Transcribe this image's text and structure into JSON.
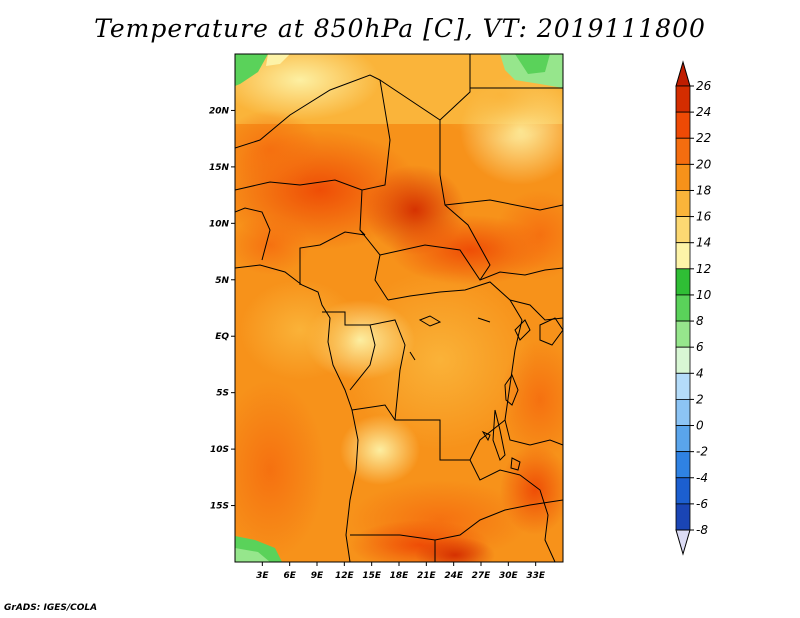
{
  "title": "Temperature at 850hPa [C], VT: 2019111800",
  "credit": "GrADS: IGES/COLA",
  "map": {
    "lon_range": [
      0,
      36
    ],
    "lat_range": [
      -20,
      25
    ],
    "lon_ticks": [
      {
        "value": 3,
        "label": "3E"
      },
      {
        "value": 6,
        "label": "6E"
      },
      {
        "value": 9,
        "label": "9E"
      },
      {
        "value": 12,
        "label": "12E"
      },
      {
        "value": 15,
        "label": "15E"
      },
      {
        "value": 18,
        "label": "18E"
      },
      {
        "value": 21,
        "label": "21E"
      },
      {
        "value": 24,
        "label": "24E"
      },
      {
        "value": 27,
        "label": "27E"
      },
      {
        "value": 30,
        "label": "30E"
      },
      {
        "value": 33,
        "label": "33E"
      }
    ],
    "lat_ticks": [
      {
        "value": 20,
        "label": "20N"
      },
      {
        "value": 15,
        "label": "15N"
      },
      {
        "value": 10,
        "label": "10N"
      },
      {
        "value": 5,
        "label": "5N"
      },
      {
        "value": 0,
        "label": "EQ"
      },
      {
        "value": -5,
        "label": "5S"
      },
      {
        "value": -10,
        "label": "10S"
      },
      {
        "value": -15,
        "label": "15S"
      }
    ]
  },
  "colorbar": {
    "levels": [
      {
        "label": "26",
        "color": "#d42d00"
      },
      {
        "label": "24",
        "color": "#ee4a05"
      },
      {
        "label": "22",
        "color": "#f56d0f"
      },
      {
        "label": "20",
        "color": "#f7921a"
      },
      {
        "label": "18",
        "color": "#fab43a"
      },
      {
        "label": "16",
        "color": "#fcd872"
      },
      {
        "label": "14",
        "color": "#fdf3a8"
      },
      {
        "label": "12",
        "color": "#2fbe35"
      },
      {
        "label": "10",
        "color": "#5ad25a"
      },
      {
        "label": "8",
        "color": "#96e68c"
      },
      {
        "label": "6",
        "color": "#d8f7d4"
      },
      {
        "label": "4",
        "color": "#b4dcfa"
      },
      {
        "label": "2",
        "color": "#8cc4f5"
      },
      {
        "label": "0",
        "color": "#5aa5ec"
      },
      {
        "label": "-2",
        "color": "#2f82e3"
      },
      {
        "label": "-4",
        "color": "#1c5fd0"
      },
      {
        "label": "-6",
        "color": "#1a45b5"
      },
      {
        "label": "-8",
        "color": "#0c2690"
      }
    ],
    "top_color": "#c01d00",
    "bottom_color": "#dcdcf5"
  }
}
